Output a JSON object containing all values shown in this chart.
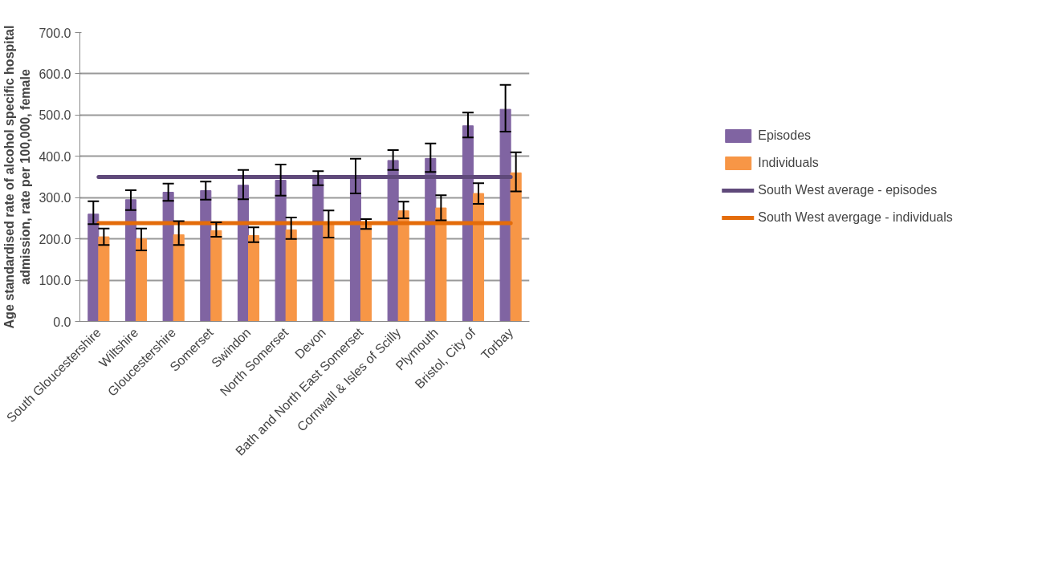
{
  "chart_data": {
    "type": "bar",
    "ylabel": "Age standardised rate of alcohol specific hospital admission, rate per 100,000, female",
    "categories": [
      "South Gloucestershire",
      "Wiltshire",
      "Gloucestershire",
      "Somerset",
      "Swindon",
      "North Somerset",
      "Devon",
      "Bath and North East Somerset",
      "Cornwall & Isles of Scilly",
      "Plymouth",
      "Bristol, City of",
      "Torbay"
    ],
    "series": [
      {
        "name": "Episodes",
        "color": "#8064a2",
        "values": [
          260,
          295,
          313,
          317,
          330,
          342,
          345,
          350,
          390,
          395,
          474,
          514
        ],
        "errors": [
          [
            236,
            291
          ],
          [
            270,
            318
          ],
          [
            292,
            334
          ],
          [
            295,
            339
          ],
          [
            296,
            367
          ],
          [
            305,
            380
          ],
          [
            330,
            364
          ],
          [
            310,
            394
          ],
          [
            367,
            415
          ],
          [
            362,
            431
          ],
          [
            446,
            506
          ],
          [
            460,
            573
          ]
        ]
      },
      {
        "name": "Individuals",
        "color": "#f79646",
        "values": [
          205,
          200,
          210,
          220,
          208,
          222,
          237,
          237,
          268,
          275,
          310,
          360
        ],
        "errors": [
          [
            185,
            225
          ],
          [
            172,
            225
          ],
          [
            185,
            243
          ],
          [
            205,
            240
          ],
          [
            192,
            228
          ],
          [
            200,
            252
          ],
          [
            203,
            269
          ],
          [
            224,
            248
          ],
          [
            250,
            290
          ],
          [
            245,
            306
          ],
          [
            285,
            335
          ],
          [
            315,
            410
          ]
        ]
      },
      {
        "name": "South West average - episodes",
        "type": "line",
        "color": "#5f497a",
        "values": [
          350,
          350,
          350,
          350,
          350,
          350,
          350,
          350,
          350,
          350,
          350,
          350
        ]
      },
      {
        "name": "South West avergage - individuals",
        "type": "line",
        "color": "#e46c0a",
        "values": [
          238,
          238,
          238,
          238,
          238,
          238,
          238,
          238,
          238,
          238,
          238,
          238
        ]
      }
    ],
    "ylim": [
      0,
      700
    ],
    "yticks": [
      {
        "value": 0,
        "label": "0.0"
      },
      {
        "value": 100,
        "label": "100.0"
      },
      {
        "value": 200,
        "label": "200.0"
      },
      {
        "value": 300,
        "label": "300.0"
      },
      {
        "value": 400,
        "label": "400.0"
      },
      {
        "value": 500,
        "label": "500.0"
      },
      {
        "value": 600,
        "label": "600.0"
      },
      {
        "value": 700,
        "label": "700.0"
      }
    ],
    "grid": "y",
    "legend": "right",
    "line_style": "solid"
  }
}
